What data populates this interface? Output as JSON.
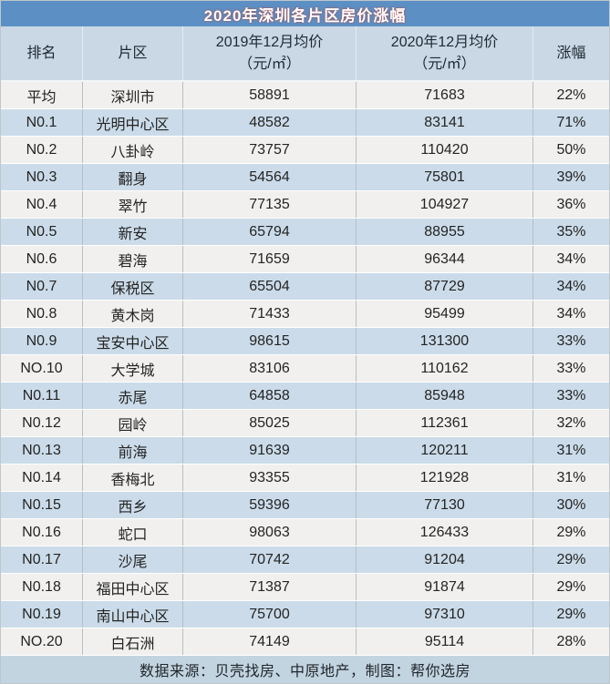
{
  "title": "2020年深圳各片区房价涨幅",
  "columns": [
    {
      "key": "rank",
      "label": "排名",
      "sublabel": ""
    },
    {
      "key": "district",
      "label": "片区",
      "sublabel": ""
    },
    {
      "key": "price_2019",
      "label": "2019年12月均价",
      "sublabel": "（元/㎡）"
    },
    {
      "key": "price_2020",
      "label": "2020年12月均价",
      "sublabel": "（元/㎡）"
    },
    {
      "key": "change",
      "label": "涨幅",
      "sublabel": ""
    }
  ],
  "table": {
    "rows": [
      {
        "rank": "平均",
        "district": "深圳市",
        "price_2019": "58891",
        "price_2020": "71683",
        "change": "22%"
      },
      {
        "rank": "N0.1",
        "district": "光明中心区",
        "price_2019": "48582",
        "price_2020": "83141",
        "change": "71%"
      },
      {
        "rank": "N0.2",
        "district": "八卦岭",
        "price_2019": "73757",
        "price_2020": "110420",
        "change": "50%"
      },
      {
        "rank": "N0.3",
        "district": "翻身",
        "price_2019": "54564",
        "price_2020": "75801",
        "change": "39%"
      },
      {
        "rank": "N0.4",
        "district": "翠竹",
        "price_2019": "77135",
        "price_2020": "104927",
        "change": "36%"
      },
      {
        "rank": "N0.5",
        "district": "新安",
        "price_2019": "65794",
        "price_2020": "88955",
        "change": "35%"
      },
      {
        "rank": "N0.6",
        "district": "碧海",
        "price_2019": "71659",
        "price_2020": "96344",
        "change": "34%"
      },
      {
        "rank": "N0.7",
        "district": "保税区",
        "price_2019": "65504",
        "price_2020": "87729",
        "change": "34%"
      },
      {
        "rank": "N0.8",
        "district": "黄木岗",
        "price_2019": "71433",
        "price_2020": "95499",
        "change": "34%"
      },
      {
        "rank": "N0.9",
        "district": "宝安中心区",
        "price_2019": "98615",
        "price_2020": "131300",
        "change": "33%"
      },
      {
        "rank": "NO.10",
        "district": "大学城",
        "price_2019": "83106",
        "price_2020": "110162",
        "change": "33%"
      },
      {
        "rank": "N0.11",
        "district": "赤尾",
        "price_2019": "64858",
        "price_2020": "85948",
        "change": "33%"
      },
      {
        "rank": "N0.12",
        "district": "园岭",
        "price_2019": "85025",
        "price_2020": "112361",
        "change": "32%"
      },
      {
        "rank": "N0.13",
        "district": "前海",
        "price_2019": "91639",
        "price_2020": "120211",
        "change": "31%"
      },
      {
        "rank": "N0.14",
        "district": "香梅北",
        "price_2019": "93355",
        "price_2020": "121928",
        "change": "31%"
      },
      {
        "rank": "N0.15",
        "district": "西乡",
        "price_2019": "59396",
        "price_2020": "77130",
        "change": "30%"
      },
      {
        "rank": "N0.16",
        "district": "蛇口",
        "price_2019": "98063",
        "price_2020": "126433",
        "change": "29%"
      },
      {
        "rank": "N0.17",
        "district": "沙尾",
        "price_2019": "70742",
        "price_2020": "91204",
        "change": "29%"
      },
      {
        "rank": "N0.18",
        "district": "福田中心区",
        "price_2019": "71387",
        "price_2020": "91874",
        "change": "29%"
      },
      {
        "rank": "N0.19",
        "district": "南山中心区",
        "price_2019": "75700",
        "price_2020": "97310",
        "change": "29%"
      },
      {
        "rank": "NO.20",
        "district": "白石洲",
        "price_2019": "74149",
        "price_2020": "95114",
        "change": "28%"
      }
    ]
  },
  "footer": "数据来源：贝壳找房、中原地产，制图：帮你选房",
  "colors": {
    "title_bg": "#5c90c5",
    "title_text": "#ffffff",
    "title_glow": "#c0392b",
    "header_bg": "#c9d8e4",
    "row_bg": "#f1f0ee",
    "row_alt_bg": "#cbdbe9",
    "footer_bg": "#c3d4e1",
    "text": "#242424"
  },
  "chart_data": {
    "type": "table",
    "title": "2020年深圳各片区房价涨幅",
    "columns": [
      "排名",
      "片区",
      "2019年12月均价（元/㎡）",
      "2020年12月均价（元/㎡）",
      "涨幅"
    ],
    "rows": [
      [
        "平均",
        "深圳市",
        58891,
        71683,
        "22%"
      ],
      [
        "N0.1",
        "光明中心区",
        48582,
        83141,
        "71%"
      ],
      [
        "N0.2",
        "八卦岭",
        73757,
        110420,
        "50%"
      ],
      [
        "N0.3",
        "翻身",
        54564,
        75801,
        "39%"
      ],
      [
        "N0.4",
        "翠竹",
        77135,
        104927,
        "36%"
      ],
      [
        "N0.5",
        "新安",
        65794,
        88955,
        "35%"
      ],
      [
        "N0.6",
        "碧海",
        71659,
        96344,
        "34%"
      ],
      [
        "N0.7",
        "保税区",
        65504,
        87729,
        "34%"
      ],
      [
        "N0.8",
        "黄木岗",
        71433,
        95499,
        "34%"
      ],
      [
        "N0.9",
        "宝安中心区",
        98615,
        131300,
        "33%"
      ],
      [
        "NO.10",
        "大学城",
        83106,
        110162,
        "33%"
      ],
      [
        "N0.11",
        "赤尾",
        64858,
        85948,
        "33%"
      ],
      [
        "N0.12",
        "园岭",
        85025,
        112361,
        "32%"
      ],
      [
        "N0.13",
        "前海",
        91639,
        120211,
        "31%"
      ],
      [
        "N0.14",
        "香梅北",
        93355,
        121928,
        "31%"
      ],
      [
        "N0.15",
        "西乡",
        59396,
        77130,
        "30%"
      ],
      [
        "N0.16",
        "蛇口",
        98063,
        126433,
        "29%"
      ],
      [
        "N0.17",
        "沙尾",
        70742,
        91204,
        "29%"
      ],
      [
        "N0.18",
        "福田中心区",
        71387,
        91874,
        "29%"
      ],
      [
        "N0.19",
        "南山中心区",
        75700,
        97310,
        "29%"
      ],
      [
        "NO.20",
        "白石洲",
        74149,
        95114,
        "28%"
      ]
    ],
    "footer": "数据来源：贝壳找房、中原地产，制图：帮你选房",
    "layout": {
      "grid": "row-striped",
      "legend": "none"
    }
  }
}
